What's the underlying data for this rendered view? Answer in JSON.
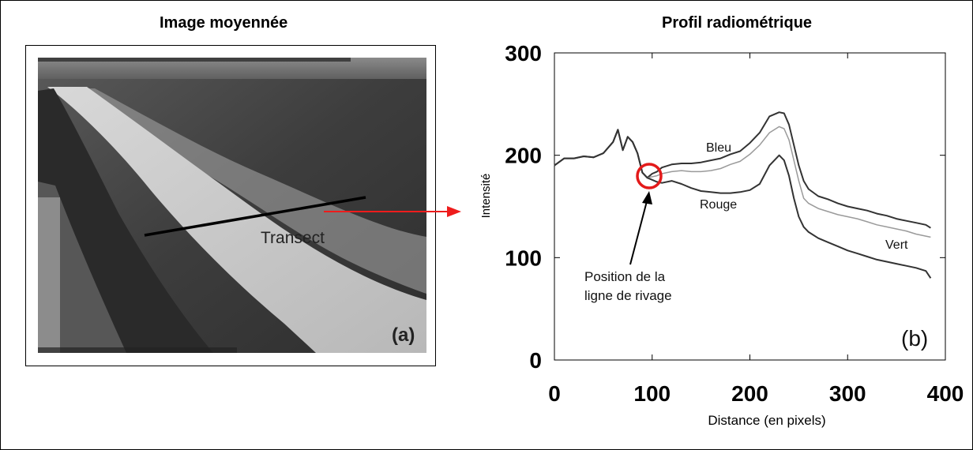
{
  "panel_a": {
    "title": "Image moyennée",
    "transect_label": "Transect",
    "panel_label": "(a)"
  },
  "panel_b": {
    "title": "Profil radiométrique",
    "panel_label": "(b)",
    "annotation": [
      "Position de la",
      "ligne de rivage"
    ]
  },
  "colors": {
    "arrow": "#ee1c1c",
    "highlight_circle": "#e31a1a",
    "series_dark": "#333333",
    "series_light": "#9a9a9a"
  },
  "chart_data": {
    "type": "line",
    "title": "Profil radiométrique",
    "xlabel": "Distance (en pixels)",
    "ylabel": "Intensité",
    "xlim": [
      0,
      400
    ],
    "ylim": [
      0,
      300
    ],
    "xticks": [
      0,
      100,
      200,
      300,
      400
    ],
    "yticks": [
      0,
      100,
      200,
      300
    ],
    "grid": false,
    "series": [
      {
        "name": "Bleu",
        "x": [
          0,
          10,
          20,
          30,
          40,
          50,
          60,
          65,
          70,
          75,
          80,
          85,
          90,
          95,
          100,
          105,
          110,
          120,
          130,
          140,
          150,
          160,
          170,
          180,
          190,
          200,
          210,
          220,
          230,
          235,
          240,
          245,
          250,
          255,
          260,
          270,
          280,
          290,
          300,
          310,
          320,
          330,
          340,
          350,
          360,
          370,
          380,
          385
        ],
        "y": [
          190,
          197,
          197,
          199,
          198,
          202,
          213,
          225,
          205,
          218,
          213,
          202,
          183,
          178,
          182,
          184,
          188,
          191,
          192,
          192,
          193,
          195,
          197,
          201,
          204,
          212,
          222,
          238,
          242,
          241,
          230,
          210,
          190,
          175,
          167,
          160,
          157,
          153,
          150,
          148,
          146,
          143,
          141,
          138,
          136,
          134,
          132,
          129
        ]
      },
      {
        "name": "Vert",
        "x": [
          0,
          10,
          20,
          30,
          40,
          50,
          60,
          65,
          70,
          75,
          80,
          85,
          90,
          95,
          100,
          105,
          110,
          120,
          130,
          140,
          150,
          160,
          170,
          180,
          190,
          200,
          210,
          220,
          230,
          235,
          240,
          245,
          250,
          255,
          260,
          270,
          280,
          290,
          300,
          310,
          320,
          330,
          340,
          350,
          360,
          370,
          380,
          385
        ],
        "y": [
          190,
          197,
          197,
          199,
          198,
          202,
          213,
          225,
          205,
          218,
          213,
          202,
          183,
          178,
          179,
          180,
          182,
          184,
          185,
          184,
          184,
          185,
          187,
          191,
          194,
          201,
          210,
          222,
          228,
          226,
          215,
          195,
          175,
          158,
          153,
          148,
          145,
          142,
          140,
          138,
          135,
          132,
          130,
          128,
          126,
          123,
          121,
          120
        ]
      },
      {
        "name": "Rouge",
        "x": [
          0,
          10,
          20,
          30,
          40,
          50,
          60,
          65,
          70,
          75,
          80,
          85,
          90,
          95,
          100,
          105,
          110,
          120,
          130,
          140,
          150,
          160,
          170,
          180,
          190,
          200,
          210,
          220,
          230,
          235,
          240,
          245,
          250,
          255,
          260,
          270,
          280,
          290,
          300,
          310,
          320,
          330,
          340,
          350,
          360,
          370,
          380,
          385
        ],
        "y": [
          190,
          197,
          197,
          199,
          198,
          202,
          213,
          225,
          205,
          218,
          213,
          202,
          183,
          178,
          176,
          174,
          173,
          175,
          172,
          168,
          165,
          164,
          163,
          163,
          164,
          166,
          172,
          190,
          200,
          195,
          180,
          158,
          140,
          130,
          125,
          119,
          115,
          111,
          107,
          104,
          101,
          98,
          96,
          94,
          92,
          90,
          87,
          80
        ]
      }
    ]
  }
}
